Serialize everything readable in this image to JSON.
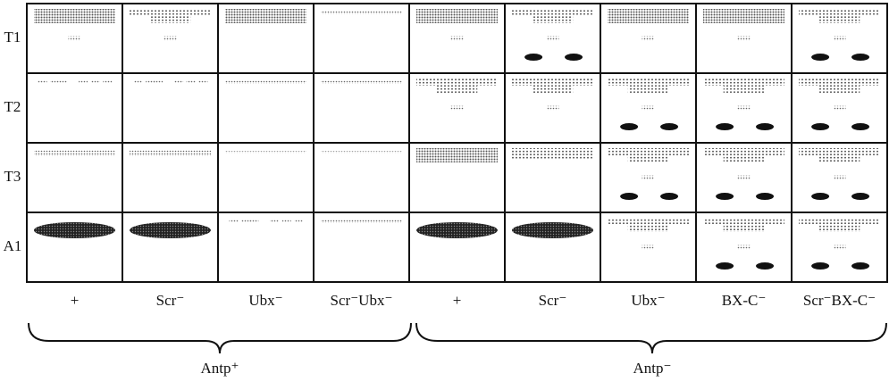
{
  "rows": [
    "T1",
    "T2",
    "T3",
    "A1"
  ],
  "columns": [
    "+",
    "Scr⁻",
    "Ubx⁻",
    "Scr⁻Ubx⁻",
    "+",
    "Scr⁻",
    "Ubx⁻",
    "BX-C⁻",
    "Scr⁻BX-C⁻"
  ],
  "groups": [
    "Antp⁺",
    "Antp⁻"
  ]
}
